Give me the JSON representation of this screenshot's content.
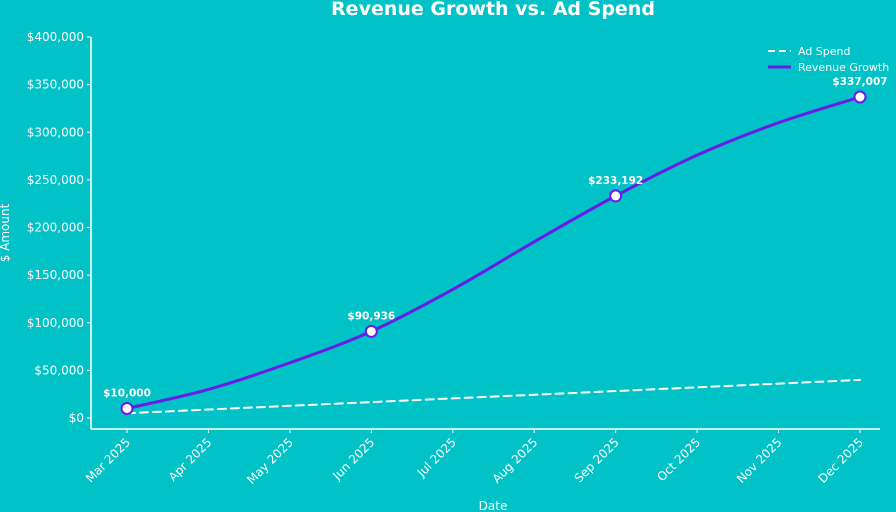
{
  "chart_data": {
    "type": "line",
    "title": "Revenue Growth vs. Ad Spend",
    "xlabel": "Date",
    "ylabel": "$ Amount",
    "x": [
      "Mar 2025",
      "Apr 2025",
      "May 2025",
      "Jun 2025",
      "Jul 2025",
      "Aug 2025",
      "Sep 2025",
      "Oct 2025",
      "Nov 2025",
      "Dec 2025"
    ],
    "x_ticks": [
      "Mar 2025",
      "Apr 2025",
      "May 2025",
      "Jun 2025",
      "Jul 2025",
      "Aug 2025",
      "Sep 2025",
      "Oct 2025",
      "Nov 2025",
      "Dec 2025"
    ],
    "ylim": [
      0,
      400000
    ],
    "y_ticks": [
      0,
      50000,
      100000,
      150000,
      200000,
      250000,
      300000,
      350000,
      400000
    ],
    "y_tick_labels": [
      "$0",
      "$50,000",
      "$100,000",
      "$150,000",
      "$200,000",
      "$250,000",
      "$300,000",
      "$350,000",
      "$400,000"
    ],
    "grid": false,
    "legend_position": "top-right",
    "series": [
      {
        "name": "Ad Spend",
        "style": "dashed",
        "color": "#ffffff",
        "values": [
          5000,
          8900,
          12800,
          16700,
          20600,
          24400,
          28300,
          32200,
          36100,
          40000
        ]
      },
      {
        "name": "Revenue Growth",
        "style": "solid",
        "color": "#6a1be6",
        "values": [
          10000,
          30000,
          58000,
          90936,
          135000,
          185000,
          233192,
          276000,
          310000,
          337007
        ]
      }
    ],
    "annotations": [
      {
        "x_index": 0,
        "value": 10000,
        "label": "$10,000"
      },
      {
        "x_index": 3,
        "value": 90936,
        "label": "$90,936"
      },
      {
        "x_index": 6,
        "value": 233192,
        "label": "$233,192"
      },
      {
        "x_index": 9,
        "value": 337007,
        "label": "$337,007"
      }
    ],
    "colors": {
      "background": "#00c2c7",
      "revenue_line": "#6a1be6",
      "marker_fill": "#ffffff",
      "axis": "#ffffff"
    }
  }
}
